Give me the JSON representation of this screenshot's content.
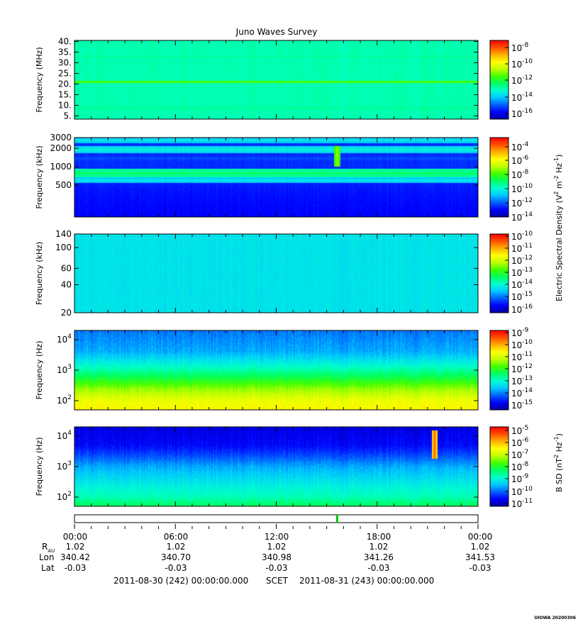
{
  "title": "Juno Waves Survey",
  "colors": {
    "colormap": [
      "#0000a0",
      "#0000ff",
      "#0060ff",
      "#00c8ff",
      "#00ffd0",
      "#00ff60",
      "#40ff00",
      "#c0ff00",
      "#ffff00",
      "#ffb000",
      "#ff5000",
      "#ff0000"
    ]
  },
  "colorbars": [
    {
      "ticks": [
        "10",
        "10",
        "10",
        "10",
        "10"
      ],
      "exps": [
        "-8",
        "-10",
        "-12",
        "-14",
        "-16"
      ]
    },
    {
      "ticks": [
        "10",
        "10",
        "10",
        "10",
        "10",
        "10"
      ],
      "exps": [
        "-4",
        "-6",
        "-8",
        "-10",
        "-12",
        "-14"
      ]
    },
    {
      "ticks": [
        "10",
        "10",
        "10",
        "10",
        "10",
        "10",
        "10"
      ],
      "exps": [
        "-10",
        "-11",
        "-12",
        "-13",
        "-14",
        "-15",
        "-16"
      ]
    },
    {
      "ticks": [
        "10",
        "10",
        "10",
        "10",
        "10",
        "10",
        "10"
      ],
      "exps": [
        "-9",
        "-10",
        "-11",
        "-12",
        "-13",
        "-14",
        "-15"
      ]
    },
    {
      "ticks": [
        "10",
        "10",
        "10",
        "10",
        "10",
        "10",
        "10"
      ],
      "exps": [
        "-5",
        "-6",
        "-7",
        "-8",
        "-9",
        "-10",
        "-11"
      ]
    }
  ],
  "colorbar_labels": {
    "electric_main": "Electric Spectral Density (V",
    "electric_sup1": "2",
    "electric_mid": " m",
    "electric_sup2": "-2",
    "electric_hz": " Hz",
    "electric_sup3": "-1",
    "electric_end": ")",
    "b_main": "B SD (nT",
    "b_sup1": "2",
    "b_hz": " Hz",
    "b_sup2": "-1",
    "b_end": ")"
  },
  "ephemeris": {
    "row_labels": {
      "rau_main": "R",
      "rau_sub": "AU",
      "lon": "Lon",
      "lat": "Lat"
    },
    "times": [
      "00:00",
      "06:00",
      "12:00",
      "18:00",
      "00:00"
    ],
    "rau": [
      "1.02",
      "1.02",
      "1.02",
      "1.02",
      "1.02"
    ],
    "lon": [
      "340.42",
      "340.70",
      "340.98",
      "341.26",
      "341.53"
    ],
    "lat": [
      "-0.03",
      "-0.03",
      "-0.03",
      "-0.03",
      "-0.03"
    ]
  },
  "footer": {
    "start": "2011-08-30 (242) 00:00:00.000",
    "scet": "SCET",
    "end": "2011-08-31 (243) 00:00:00.000"
  },
  "stamp": "UIOWA 20200306",
  "chart_data": [
    {
      "type": "heatmap",
      "panel": "Waves HFR high band",
      "ylabel": "Frequency (MHz)",
      "yscale": "linear",
      "ylim": [
        3.5,
        40.5
      ],
      "yticks": [
        "40.",
        "35.",
        "30.",
        "25.",
        "20.",
        "15.",
        "10.",
        "5."
      ],
      "ytick_values": [
        40,
        35,
        30,
        25,
        20,
        15,
        10,
        5
      ],
      "xlim_hours": [
        0,
        24
      ],
      "colorbar_range_exp": [
        -17,
        -7.5
      ],
      "background_log_level": -13.3,
      "features": [
        {
          "kind": "band",
          "y": 21,
          "width": 0.6,
          "level": -11.6
        },
        {
          "kind": "band",
          "y": 8.5,
          "width": 0.5,
          "level": -12.8
        },
        {
          "kind": "band",
          "y": 33,
          "width": 0.9,
          "level": -13.0
        }
      ]
    },
    {
      "type": "heatmap",
      "panel": "Waves HFR low band",
      "ylabel": "Frequency (kHz)",
      "yscale": "log",
      "ylim": [
        150,
        3000
      ],
      "yticks": [
        "3000",
        "2000",
        "1000",
        "500"
      ],
      "ytick_values": [
        3000,
        2000,
        1000,
        500
      ],
      "xlim_hours": [
        0,
        24
      ],
      "colorbar_range_exp": [
        -14,
        -3.5
      ],
      "background_log_level": -12.6,
      "features": [
        {
          "kind": "band",
          "y": 2700,
          "width": 0.05,
          "level": -10.6
        },
        {
          "kind": "band",
          "y": 1900,
          "width": 0.06,
          "level": -10.4
        },
        {
          "kind": "band",
          "y": 1350,
          "width": 0.08,
          "level": -12.3
        },
        {
          "kind": "band",
          "y": 780,
          "width": 0.07,
          "level": -9.3
        },
        {
          "kind": "band",
          "y": 600,
          "width": 0.05,
          "level": -10.6
        },
        {
          "kind": "event",
          "x_hour": 15.6,
          "y": [
            1000,
            2200
          ],
          "level": -7.6
        }
      ]
    },
    {
      "type": "heatmap",
      "panel": "Waves LFR high",
      "ylabel": "Frequency (kHz)",
      "yscale": "log",
      "ylim": [
        20,
        140
      ],
      "yticks": [
        "140",
        "100",
        "60",
        "40",
        "20"
      ],
      "ytick_values": [
        140,
        100,
        60,
        40,
        20
      ],
      "xlim_hours": [
        0,
        24
      ],
      "colorbar_range_exp": [
        -16,
        -10
      ],
      "background_log_level": -14.1,
      "features": []
    },
    {
      "type": "heatmap",
      "panel": "Waves LFR low electric",
      "ylabel": "Frequency (Hz)",
      "yscale": "log",
      "ylim": [
        50,
        20000
      ],
      "yticks": [
        "10",
        "10",
        "10"
      ],
      "ytick_exps": [
        "4",
        "3",
        "2"
      ],
      "ytick_values": [
        10000,
        1000,
        100
      ],
      "xlim_hours": [
        0,
        24
      ],
      "colorbar_range_exp": [
        -15,
        -9
      ],
      "profile": [
        {
          "f": 50,
          "level": -10.6
        },
        {
          "f": 100,
          "level": -10.8
        },
        {
          "f": 250,
          "level": -11.4
        },
        {
          "f": 600,
          "level": -12.2
        },
        {
          "f": 1500,
          "level": -12.9
        },
        {
          "f": 4000,
          "level": -13.5
        },
        {
          "f": 20000,
          "level": -13.8
        }
      ]
    },
    {
      "type": "heatmap",
      "panel": "Waves LFR low magnetic",
      "ylabel": "Frequency (Hz)",
      "yscale": "log",
      "ylim": [
        50,
        20000
      ],
      "yticks": [
        "10",
        "10",
        "10"
      ],
      "ytick_exps": [
        "4",
        "3",
        "2"
      ],
      "ytick_values": [
        10000,
        1000,
        100
      ],
      "xlim_hours": [
        0,
        24
      ],
      "colorbar_range_exp": [
        -11,
        -4.5
      ],
      "profile": [
        {
          "f": 50,
          "level": -8.0
        },
        {
          "f": 100,
          "level": -8.5
        },
        {
          "f": 300,
          "level": -8.9
        },
        {
          "f": 1000,
          "level": -9.4
        },
        {
          "f": 2500,
          "level": -10.0
        },
        {
          "f": 5000,
          "level": -10.4
        },
        {
          "f": 20000,
          "level": -10.6
        }
      ],
      "features": [
        {
          "kind": "event",
          "x_hour": 21.4,
          "y": [
            1800,
            15000
          ],
          "level": -5.2
        }
      ]
    }
  ]
}
